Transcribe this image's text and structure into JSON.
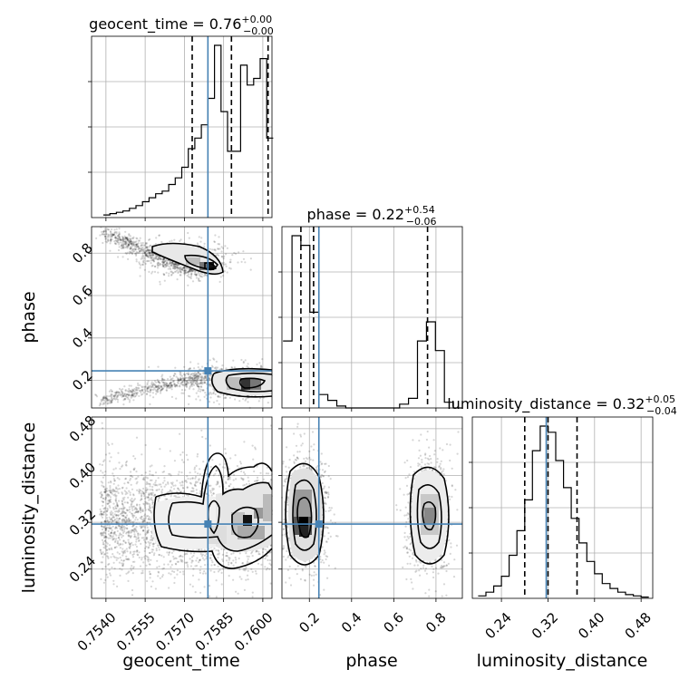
{
  "chart_data": {
    "type": "corner",
    "parameters": [
      "geocent_time",
      "phase",
      "luminosity_distance"
    ],
    "truths": {
      "geocent_time": 0.7579,
      "phase": 0.245,
      "luminosity_distance": 0.317
    },
    "colors": {
      "truth": "#4682b4",
      "line": "#000000",
      "grid": "#b0b0b0"
    },
    "grid": true,
    "axes": {
      "geocent_time": {
        "label": "geocent_time",
        "range": [
          0.75345,
          0.76035
        ],
        "ticks": [
          0.754,
          0.7555,
          0.757,
          0.7585,
          0.76
        ],
        "tick_labels": [
          "0.7540",
          "0.7555",
          "0.7570",
          "0.7585",
          "0.7600"
        ]
      },
      "phase": {
        "label": "phase",
        "range": [
          0.07,
          0.925
        ],
        "ticks": [
          0.2,
          0.4,
          0.6,
          0.8
        ],
        "tick_labels": [
          "0.2",
          "0.4",
          "0.6",
          "0.8"
        ]
      },
      "luminosity_distance": {
        "label": "luminosity_distance",
        "range": [
          0.19,
          0.5
        ],
        "ticks": [
          0.24,
          0.32,
          0.4,
          0.48
        ],
        "tick_labels": [
          "0.24",
          "0.32",
          "0.40",
          "0.48"
        ]
      }
    },
    "marginals": [
      {
        "parameter": "geocent_time",
        "title": {
          "name": "geocent_time",
          "value": "0.76",
          "plus": "+0.00",
          "minus": "−0.00"
        },
        "quantiles": [
          0.7573,
          0.7588,
          0.7602
        ],
        "bins": {
          "edges": [
            0.7539,
            0.75415,
            0.7544,
            0.75465,
            0.7549,
            0.75515,
            0.7554,
            0.75565,
            0.7559,
            0.75615,
            0.7564,
            0.75665,
            0.7569,
            0.75715,
            0.7574,
            0.75765,
            0.7579,
            0.75815,
            0.7584,
            0.75865,
            0.7589,
            0.75915,
            0.7594,
            0.75965,
            0.7599,
            0.76015,
            0.7604
          ],
          "counts": [
            2,
            3,
            4,
            5,
            7,
            9,
            12,
            15,
            18,
            20,
            25,
            30,
            38,
            52,
            60,
            70,
            90,
            130,
            80,
            50,
            50,
            115,
            100,
            105,
            120,
            60
          ]
        }
      },
      {
        "parameter": "phase",
        "title": {
          "name": "phase",
          "value": "0.22",
          "plus": "+0.54",
          "minus": "−0.06"
        },
        "quantiles": [
          0.16,
          0.22,
          0.76
        ],
        "bins": {
          "edges": [
            0.075,
            0.1175,
            0.16,
            0.2025,
            0.245,
            0.2875,
            0.33,
            0.3725,
            0.415,
            0.4575,
            0.5,
            0.5425,
            0.585,
            0.6275,
            0.67,
            0.7125,
            0.755,
            0.7975,
            0.84,
            0.8825,
            0.925
          ],
          "counts": [
            35,
            90,
            85,
            50,
            7,
            4,
            1,
            0,
            0,
            0,
            0,
            0,
            0,
            2,
            5,
            35,
            45,
            30,
            3,
            0
          ]
        }
      },
      {
        "parameter": "luminosity_distance",
        "title": {
          "name": "luminosity_distance",
          "value": "0.32",
          "plus": "+0.05",
          "minus": "−0.04"
        },
        "quantiles": [
          0.28,
          0.32,
          0.37
        ],
        "bins": {
          "edges": [
            0.2,
            0.2133,
            0.2267,
            0.24,
            0.2533,
            0.2667,
            0.28,
            0.2933,
            0.3067,
            0.32,
            0.3333,
            0.3467,
            0.36,
            0.3733,
            0.3867,
            0.4,
            0.4133,
            0.4267,
            0.44,
            0.4533,
            0.4667,
            0.48,
            0.4933
          ],
          "counts": [
            2,
            5,
            10,
            18,
            35,
            55,
            80,
            120,
            140,
            135,
            112,
            90,
            65,
            45,
            30,
            20,
            12,
            8,
            5,
            3,
            2,
            1
          ]
        }
      }
    ]
  }
}
